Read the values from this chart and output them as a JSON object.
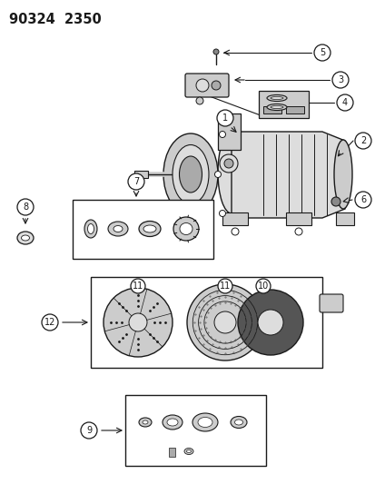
{
  "title": "90324  2350",
  "bg_color": "#ffffff",
  "line_color": "#1a1a1a",
  "fig_width": 4.14,
  "fig_height": 5.33,
  "dpi": 100,
  "gray1": "#888888",
  "gray2": "#aaaaaa",
  "gray3": "#cccccc",
  "gray4": "#dddddd",
  "gray_dark": "#555555"
}
